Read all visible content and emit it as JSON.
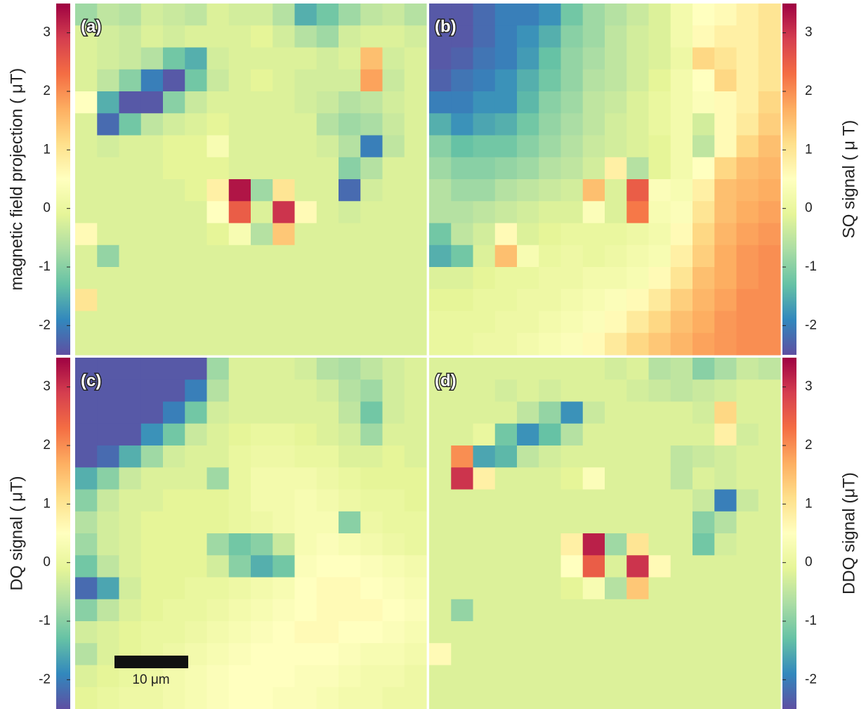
{
  "chart_data": [
    {
      "type": "heatmap",
      "panel_label": "(a)",
      "colorbar_label": "magnetic field projection ( μT)",
      "zlim": [
        -2.5,
        3.5
      ],
      "zticks": [
        -2,
        -1,
        0,
        1,
        2,
        3
      ],
      "colors": [
        "#5e4fa2",
        "#3288bd",
        "#66c2a5",
        "#abdda4",
        "#e6f598",
        "#ffffbf",
        "#fee08b",
        "#fdae61",
        "#f46d43",
        "#d53e4f",
        "#9e0142"
      ],
      "values": [
        [
          -0.8,
          -0.5,
          -0.6,
          -0.3,
          -0.4,
          -0.5,
          -0.2,
          -0.3,
          -0.3,
          -0.6,
          -1.5,
          -1.2,
          -0.8,
          -0.5,
          -0.4,
          -0.6
        ],
        [
          -0.2,
          -0.3,
          -0.4,
          -0.2,
          -0.3,
          -0.2,
          -0.2,
          -0.2,
          -0.1,
          -0.3,
          -0.6,
          -0.8,
          -0.3,
          -0.2,
          -0.2,
          -0.3
        ],
        [
          -0.2,
          -0.3,
          -0.4,
          -0.6,
          -1.2,
          -1.5,
          -0.3,
          -0.2,
          -0.2,
          -0.2,
          -0.2,
          -0.3,
          -0.2,
          1.5,
          -0.3,
          -0.2
        ],
        [
          -0.2,
          -0.5,
          -1.0,
          -2.0,
          -2.4,
          -1.2,
          -0.4,
          -0.2,
          -0.1,
          -0.2,
          -0.3,
          -0.3,
          -0.3,
          1.8,
          -0.4,
          -0.2
        ],
        [
          0.5,
          -1.5,
          -2.4,
          -2.4,
          -1.0,
          -0.4,
          -0.2,
          -0.2,
          -0.2,
          -0.2,
          -0.3,
          -0.4,
          -0.6,
          -0.5,
          -0.3,
          -0.2
        ],
        [
          -0.2,
          -2.2,
          -1.2,
          -0.5,
          -0.3,
          -0.2,
          -0.1,
          -0.2,
          -0.2,
          -0.2,
          -0.2,
          -0.6,
          -0.8,
          -0.7,
          -0.4,
          -0.2
        ],
        [
          -0.2,
          -0.3,
          -0.2,
          -0.2,
          -0.1,
          -0.1,
          0.3,
          -0.2,
          -0.2,
          -0.2,
          -0.2,
          -0.3,
          -0.6,
          -2.0,
          -0.5,
          -0.2
        ],
        [
          -0.2,
          -0.2,
          -0.2,
          -0.2,
          -0.1,
          -0.1,
          -0.1,
          -0.2,
          -0.2,
          -0.2,
          -0.2,
          -0.2,
          -1.0,
          -0.6,
          -0.2,
          -0.2
        ],
        [
          -0.2,
          -0.2,
          -0.2,
          -0.2,
          -0.2,
          -0.1,
          0.8,
          3.3,
          -0.8,
          1.0,
          -0.2,
          -0.2,
          -2.2,
          -0.3,
          -0.2,
          -0.2
        ],
        [
          -0.2,
          -0.2,
          -0.2,
          -0.2,
          -0.2,
          -0.2,
          0.5,
          2.5,
          -0.2,
          3.0,
          0.6,
          -0.2,
          -0.3,
          -0.2,
          -0.2,
          -0.2
        ],
        [
          0.6,
          -0.2,
          -0.2,
          -0.2,
          -0.2,
          -0.2,
          -0.1,
          0.3,
          -0.6,
          1.4,
          -0.2,
          -0.2,
          -0.2,
          -0.2,
          -0.2,
          -0.2
        ],
        [
          -0.2,
          -0.9,
          -0.2,
          -0.2,
          -0.2,
          -0.2,
          -0.2,
          -0.2,
          -0.2,
          -0.2,
          -0.2,
          -0.2,
          -0.2,
          -0.2,
          -0.2,
          -0.2
        ],
        [
          -0.2,
          -0.2,
          -0.2,
          -0.2,
          -0.2,
          -0.2,
          -0.2,
          -0.2,
          -0.2,
          -0.2,
          -0.2,
          -0.2,
          -0.2,
          -0.2,
          -0.2,
          -0.2
        ],
        [
          1.0,
          -0.2,
          -0.2,
          -0.2,
          -0.2,
          -0.2,
          -0.2,
          -0.2,
          -0.2,
          -0.2,
          -0.2,
          -0.2,
          -0.2,
          -0.2,
          -0.2,
          -0.2
        ],
        [
          -0.2,
          -0.2,
          -0.2,
          -0.2,
          -0.2,
          -0.2,
          -0.2,
          -0.2,
          -0.2,
          -0.2,
          -0.2,
          -0.2,
          -0.2,
          -0.2,
          -0.2,
          -0.2
        ],
        [
          -0.2,
          -0.2,
          -0.2,
          -0.2,
          -0.2,
          -0.2,
          -0.2,
          -0.2,
          -0.2,
          -0.2,
          -0.2,
          -0.2,
          -0.2,
          -0.2,
          -0.2,
          -0.2
        ]
      ]
    },
    {
      "type": "heatmap",
      "panel_label": "(b)",
      "colorbar_label": "SQ signal ( μ T)",
      "zlim": [
        -2.5,
        3.5
      ],
      "zticks": [
        -2,
        -1,
        0,
        1,
        2,
        3
      ],
      "colors": [
        "#5e4fa2",
        "#3288bd",
        "#66c2a5",
        "#abdda4",
        "#e6f598",
        "#ffffbf",
        "#fee08b",
        "#fdae61",
        "#f46d43",
        "#d53e4f",
        "#9e0142"
      ],
      "values": [
        [
          -2.4,
          -2.4,
          -2.2,
          -2.0,
          -2.0,
          -1.8,
          -1.2,
          -0.8,
          -0.6,
          -0.4,
          -0.2,
          0.2,
          0.5,
          0.6,
          0.8,
          1.0
        ],
        [
          -2.4,
          -2.4,
          -2.2,
          -2.0,
          -1.8,
          -1.5,
          -1.0,
          -0.8,
          -0.5,
          -0.3,
          -0.2,
          0.2,
          0.6,
          0.8,
          0.8,
          1.0
        ],
        [
          -2.4,
          -2.3,
          -2.1,
          -2.0,
          -1.7,
          -1.3,
          -0.9,
          -0.7,
          -0.5,
          -0.3,
          -0.2,
          0.1,
          1.2,
          1.0,
          0.8,
          1.0
        ],
        [
          -2.3,
          -2.1,
          -2.0,
          -1.8,
          -1.5,
          -1.2,
          -0.9,
          -0.6,
          -0.5,
          -0.3,
          -0.1,
          0.2,
          0.5,
          1.2,
          0.8,
          1.0
        ],
        [
          -2.0,
          -2.0,
          -1.8,
          -1.8,
          -1.4,
          -1.0,
          -0.8,
          -0.5,
          -0.4,
          -0.2,
          0,
          0.2,
          0.4,
          0.6,
          0.8,
          1.2
        ],
        [
          -1.5,
          -1.8,
          -1.6,
          -1.5,
          -1.2,
          -0.9,
          -0.7,
          -0.5,
          -0.3,
          -0.2,
          0,
          0.2,
          -0.3,
          0.6,
          0.9,
          1.3
        ],
        [
          -1.0,
          -1.3,
          -1.2,
          -1.2,
          -1.0,
          -0.8,
          -0.6,
          -0.4,
          -0.3,
          -0.2,
          -0.1,
          0.2,
          -0.5,
          0.6,
          1.2,
          1.5
        ],
        [
          -0.8,
          -1.0,
          -1.0,
          -0.9,
          -0.8,
          -0.6,
          -0.5,
          -0.3,
          0.8,
          -0.6,
          -0.1,
          0.2,
          0.5,
          1.2,
          1.5,
          1.6
        ],
        [
          -0.6,
          -0.8,
          -0.8,
          -0.6,
          -0.5,
          -0.4,
          -0.3,
          1.5,
          -0.2,
          2.5,
          0.4,
          0.3,
          0.8,
          1.5,
          1.6,
          1.7
        ],
        [
          -0.6,
          -0.6,
          -0.5,
          -0.4,
          -0.3,
          -0.2,
          -0.2,
          0.4,
          -0.2,
          2.2,
          0.3,
          0.4,
          1.0,
          1.5,
          1.7,
          1.8
        ],
        [
          -1.2,
          -0.5,
          -0.3,
          0.6,
          -0.2,
          -0.1,
          0,
          0,
          0,
          0.1,
          0.2,
          0.6,
          1.2,
          1.6,
          1.8,
          1.9
        ],
        [
          -1.5,
          -1.2,
          -0.2,
          1.5,
          0.3,
          0,
          0.1,
          0,
          0.1,
          0.2,
          0.3,
          0.8,
          1.3,
          1.7,
          1.9,
          2.0
        ],
        [
          -0.2,
          -0.2,
          -0.1,
          0,
          0,
          0.1,
          0.1,
          0.2,
          0.2,
          0.3,
          0.6,
          1.0,
          1.5,
          1.7,
          1.9,
          2.0
        ],
        [
          -0.1,
          -0.1,
          0,
          0,
          0.1,
          0.1,
          0.2,
          0.3,
          0.4,
          0.6,
          0.9,
          1.3,
          1.6,
          1.8,
          2.0,
          2.0
        ],
        [
          0,
          0,
          0,
          0.1,
          0.1,
          0.2,
          0.3,
          0.4,
          0.6,
          0.9,
          1.2,
          1.5,
          1.7,
          1.9,
          2.0,
          2.0
        ],
        [
          0,
          0,
          0.1,
          0.1,
          0.2,
          0.3,
          0.4,
          0.6,
          0.9,
          1.2,
          1.4,
          1.6,
          1.8,
          1.9,
          2.0,
          2.0
        ]
      ]
    },
    {
      "type": "heatmap",
      "panel_label": "(c)",
      "colorbar_label": "DQ signal ( μT)",
      "scale_bar_label": "10 μm",
      "zlim": [
        -2.5,
        3.5
      ],
      "zticks": [
        -2,
        -1,
        0,
        1,
        2,
        3
      ],
      "colors": [
        "#5e4fa2",
        "#3288bd",
        "#66c2a5",
        "#abdda4",
        "#e6f598",
        "#ffffbf",
        "#fee08b",
        "#fdae61",
        "#f46d43",
        "#d53e4f",
        "#9e0142"
      ],
      "values": [
        [
          -2.4,
          -2.4,
          -2.4,
          -2.4,
          -2.4,
          -2.4,
          -0.8,
          -0.2,
          -0.2,
          -0.2,
          -0.3,
          -0.6,
          -0.7,
          -0.5,
          -0.3,
          -0.2
        ],
        [
          -2.4,
          -2.4,
          -2.4,
          -2.4,
          -2.4,
          -2.0,
          -0.6,
          -0.2,
          -0.2,
          -0.2,
          -0.2,
          -0.3,
          -0.6,
          -0.8,
          -0.3,
          -0.2
        ],
        [
          -2.4,
          -2.4,
          -2.4,
          -2.4,
          -2.0,
          -1.2,
          -0.3,
          -0.2,
          -0.2,
          -0.2,
          -0.2,
          -0.2,
          -0.5,
          -1.2,
          -0.3,
          -0.2
        ],
        [
          -2.4,
          -2.4,
          -2.4,
          -1.8,
          -1.2,
          -0.4,
          -0.2,
          -0.1,
          0,
          0,
          -0.1,
          -0.2,
          -0.3,
          -0.8,
          -0.2,
          -0.2
        ],
        [
          -2.4,
          -2.2,
          -1.5,
          -0.8,
          -0.3,
          -0.2,
          -0.2,
          0,
          0.1,
          0.1,
          0,
          0,
          -0.2,
          -0.2,
          -0.1,
          -0.2
        ],
        [
          -1.5,
          -1.0,
          -0.4,
          -0.2,
          -0.2,
          -0.2,
          -0.8,
          0,
          0.2,
          0.2,
          0.2,
          0.1,
          0,
          -0.1,
          -0.1,
          -0.1
        ],
        [
          -1.0,
          -0.4,
          -0.2,
          -0.2,
          -0.1,
          -0.1,
          -0.1,
          0,
          0.2,
          0.2,
          0.3,
          0.2,
          0.1,
          0,
          0,
          -0.1
        ],
        [
          -0.6,
          -0.3,
          -0.2,
          -0.1,
          -0.1,
          -0.1,
          -0.1,
          0,
          0.1,
          0.2,
          0.3,
          0.3,
          -1.0,
          0.1,
          0,
          0
        ],
        [
          -0.8,
          -0.3,
          -0.2,
          -0.1,
          -0.1,
          -0.1,
          -0.8,
          -1.2,
          -1.0,
          -0.4,
          0.3,
          0.4,
          0.3,
          0.2,
          0.1,
          0
        ],
        [
          -1.2,
          -0.5,
          -0.2,
          -0.1,
          -0.1,
          -0.1,
          -0.3,
          -1.0,
          -1.5,
          -1.2,
          0.4,
          0.5,
          0.5,
          0.4,
          0.3,
          0.2
        ],
        [
          -2.2,
          -1.6,
          -0.3,
          -0.1,
          -0.1,
          0,
          0,
          0.1,
          0.2,
          0.3,
          0.5,
          0.6,
          0.6,
          0.5,
          0.4,
          0.3
        ],
        [
          -1.0,
          -0.5,
          -0.2,
          -0.1,
          0,
          0,
          0.1,
          0.2,
          0.3,
          0.4,
          0.5,
          0.6,
          0.6,
          0.6,
          0.5,
          0.4
        ],
        [
          -0.3,
          -0.2,
          -0.1,
          0,
          0,
          0.1,
          0.2,
          0.3,
          0.4,
          0.5,
          0.6,
          0.6,
          0.5,
          0.5,
          0.4,
          0.3
        ],
        [
          -0.6,
          -0.2,
          -0.1,
          0,
          0.1,
          0.2,
          0.3,
          0.4,
          0.5,
          0.5,
          0.5,
          0.5,
          0.4,
          0.3,
          0.3,
          0.2
        ],
        [
          -0.2,
          -0.1,
          0,
          0.1,
          0.2,
          0.3,
          0.4,
          0.5,
          0.5,
          0.5,
          0.4,
          0.4,
          0.3,
          0.2,
          0.2,
          0.1
        ],
        [
          -0.1,
          0,
          0.1,
          0.1,
          0.2,
          0.3,
          0.4,
          0.5,
          0.5,
          0.4,
          0.4,
          0.3,
          0.2,
          0.2,
          0.1,
          0.1
        ]
      ]
    },
    {
      "type": "heatmap",
      "panel_label": "(d)",
      "colorbar_label": "DDQ signal (μT)",
      "zlim": [
        -2.5,
        3.5
      ],
      "zticks": [
        -2,
        -1,
        0,
        1,
        2,
        3
      ],
      "colors": [
        "#5e4fa2",
        "#3288bd",
        "#66c2a5",
        "#abdda4",
        "#e6f598",
        "#ffffbf",
        "#fee08b",
        "#fdae61",
        "#f46d43",
        "#d53e4f",
        "#9e0142"
      ],
      "values": [
        [
          -0.2,
          -0.2,
          -0.2,
          -0.2,
          -0.2,
          -0.2,
          -0.2,
          -0.2,
          -0.3,
          -0.2,
          -0.6,
          -0.5,
          -1.0,
          -0.7,
          -0.4,
          -0.5
        ],
        [
          -0.2,
          -0.2,
          -0.2,
          -0.3,
          -0.2,
          -0.3,
          -0.2,
          -0.2,
          -0.2,
          -0.3,
          -0.4,
          -0.5,
          -0.4,
          -0.3,
          -0.2,
          -0.2
        ],
        [
          -0.2,
          -0.2,
          -0.2,
          -0.2,
          -0.5,
          -0.9,
          -1.8,
          -0.4,
          -0.2,
          -0.2,
          -0.2,
          -0.2,
          -0.3,
          1.2,
          -0.2,
          -0.2
        ],
        [
          -0.2,
          -0.2,
          0.0,
          -1.2,
          -1.8,
          -1.3,
          -0.6,
          -0.2,
          -0.2,
          -0.2,
          -0.2,
          -0.2,
          -0.2,
          0.8,
          -0.3,
          -0.2
        ],
        [
          -0.2,
          2.0,
          -1.6,
          -1.4,
          -0.5,
          -0.3,
          -0.2,
          -0.2,
          -0.2,
          -0.2,
          -0.2,
          -0.5,
          -0.4,
          -0.3,
          -0.2,
          -0.2
        ],
        [
          -0.2,
          3.0,
          0.8,
          -0.2,
          -0.2,
          -0.2,
          -0.1,
          0.4,
          -0.2,
          -0.2,
          -0.2,
          -0.5,
          -0.2,
          -0.3,
          -0.2,
          -0.2
        ],
        [
          -0.2,
          -0.2,
          -0.2,
          -0.2,
          -0.2,
          -0.2,
          -0.2,
          -0.2,
          -0.2,
          -0.2,
          -0.2,
          -0.2,
          -0.4,
          -2.0,
          -0.4,
          -0.2
        ],
        [
          -0.2,
          -0.2,
          -0.2,
          -0.2,
          -0.2,
          -0.2,
          -0.2,
          -0.2,
          -0.2,
          -0.2,
          -0.2,
          -0.2,
          -1.0,
          -0.6,
          -0.2,
          -0.2
        ],
        [
          -0.2,
          -0.2,
          -0.2,
          -0.2,
          -0.2,
          -0.2,
          0.8,
          3.2,
          -0.8,
          1.0,
          -0.2,
          -0.2,
          -1.2,
          -0.3,
          -0.2,
          -0.2
        ],
        [
          -0.2,
          -0.2,
          -0.2,
          -0.2,
          -0.2,
          -0.2,
          0.5,
          2.5,
          -0.2,
          3.0,
          0.6,
          -0.2,
          -0.2,
          -0.2,
          -0.2,
          -0.2
        ],
        [
          -0.2,
          -0.2,
          -0.2,
          -0.2,
          -0.2,
          -0.2,
          -0.1,
          0.3,
          -0.6,
          1.4,
          -0.2,
          -0.2,
          -0.2,
          -0.2,
          -0.2,
          -0.2
        ],
        [
          -0.2,
          -0.9,
          -0.2,
          -0.2,
          -0.2,
          -0.2,
          -0.2,
          -0.2,
          -0.2,
          -0.2,
          -0.2,
          -0.2,
          -0.2,
          -0.2,
          -0.2,
          -0.2
        ],
        [
          -0.2,
          -0.2,
          -0.2,
          -0.2,
          -0.2,
          -0.2,
          -0.2,
          -0.2,
          -0.2,
          -0.2,
          -0.2,
          -0.2,
          -0.2,
          -0.2,
          -0.2,
          -0.2
        ],
        [
          0.6,
          -0.2,
          -0.2,
          -0.2,
          -0.2,
          -0.2,
          -0.2,
          -0.2,
          -0.2,
          -0.2,
          -0.2,
          -0.2,
          -0.2,
          -0.2,
          -0.2,
          -0.2
        ],
        [
          -0.2,
          -0.2,
          -0.2,
          -0.2,
          -0.2,
          -0.2,
          -0.2,
          -0.2,
          -0.2,
          -0.2,
          -0.2,
          -0.2,
          -0.2,
          -0.2,
          -0.2,
          -0.2
        ],
        [
          -0.2,
          -0.2,
          -0.2,
          -0.2,
          -0.2,
          -0.2,
          -0.2,
          -0.2,
          -0.2,
          -0.2,
          -0.2,
          -0.2,
          -0.2,
          -0.2,
          -0.2,
          -0.2
        ]
      ]
    }
  ]
}
